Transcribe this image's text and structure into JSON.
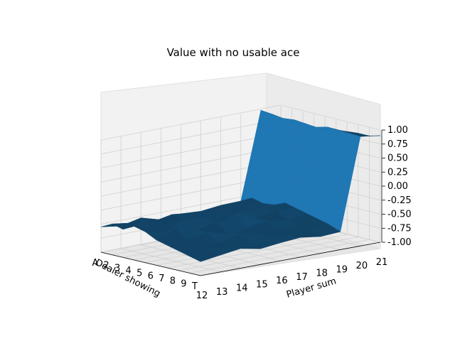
{
  "chart_data": {
    "type": "surface3d",
    "title": "Value with no usable ace",
    "xlabel": "Dealer showing",
    "ylabel": "Player sum",
    "zlabel": "",
    "x_ticklabels": [
      "A",
      "2",
      "3",
      "4",
      "5",
      "6",
      "7",
      "8",
      "9",
      "T"
    ],
    "y_ticklabels": [
      "12",
      "13",
      "14",
      "15",
      "16",
      "17",
      "18",
      "19",
      "20",
      "21"
    ],
    "z_ticklabels": [
      "1.00",
      "0.75",
      "0.50",
      "0.25",
      "0.00",
      "-0.25",
      "-0.50",
      "-0.75",
      "-1.00"
    ],
    "zlim": [
      -1,
      1
    ],
    "surface_color": "#1f77b4",
    "grid": true,
    "z_values": [
      [
        -0.55,
        -0.6,
        -0.52,
        -0.62,
        -0.58,
        -0.6,
        -0.56,
        -0.55,
        1.0,
        0.65
      ],
      [
        -0.45,
        -0.5,
        -0.55,
        -0.48,
        -0.52,
        -0.55,
        -0.5,
        -0.45,
        0.98,
        0.75
      ],
      [
        -0.5,
        -0.45,
        -0.55,
        -0.55,
        -0.48,
        -0.5,
        -0.45,
        -0.5,
        0.95,
        0.8
      ],
      [
        -0.4,
        -0.5,
        -0.45,
        -0.5,
        -0.55,
        -0.45,
        -0.52,
        -0.48,
        0.97,
        0.78
      ],
      [
        -0.45,
        -0.55,
        -0.35,
        -0.4,
        -0.5,
        -0.4,
        -0.45,
        -0.4,
        0.95,
        0.72
      ],
      [
        -0.55,
        -0.4,
        -0.5,
        -0.45,
        -0.35,
        -0.5,
        -0.42,
        -0.45,
        0.93,
        0.75
      ],
      [
        -0.6,
        -0.55,
        -0.5,
        -0.6,
        -0.55,
        -0.5,
        -0.55,
        -0.5,
        0.98,
        0.82
      ],
      [
        -0.65,
        -0.6,
        -0.65,
        -0.55,
        -0.6,
        -0.62,
        -0.58,
        -0.55,
        0.97,
        0.85
      ],
      [
        -0.7,
        -0.62,
        -0.68,
        -0.65,
        -0.6,
        -0.65,
        -0.62,
        -0.6,
        0.96,
        0.85
      ],
      [
        -0.75,
        -0.7,
        -0.65,
        -0.72,
        -0.68,
        -0.65,
        -0.7,
        -0.68,
        0.95,
        0.9
      ]
    ]
  }
}
